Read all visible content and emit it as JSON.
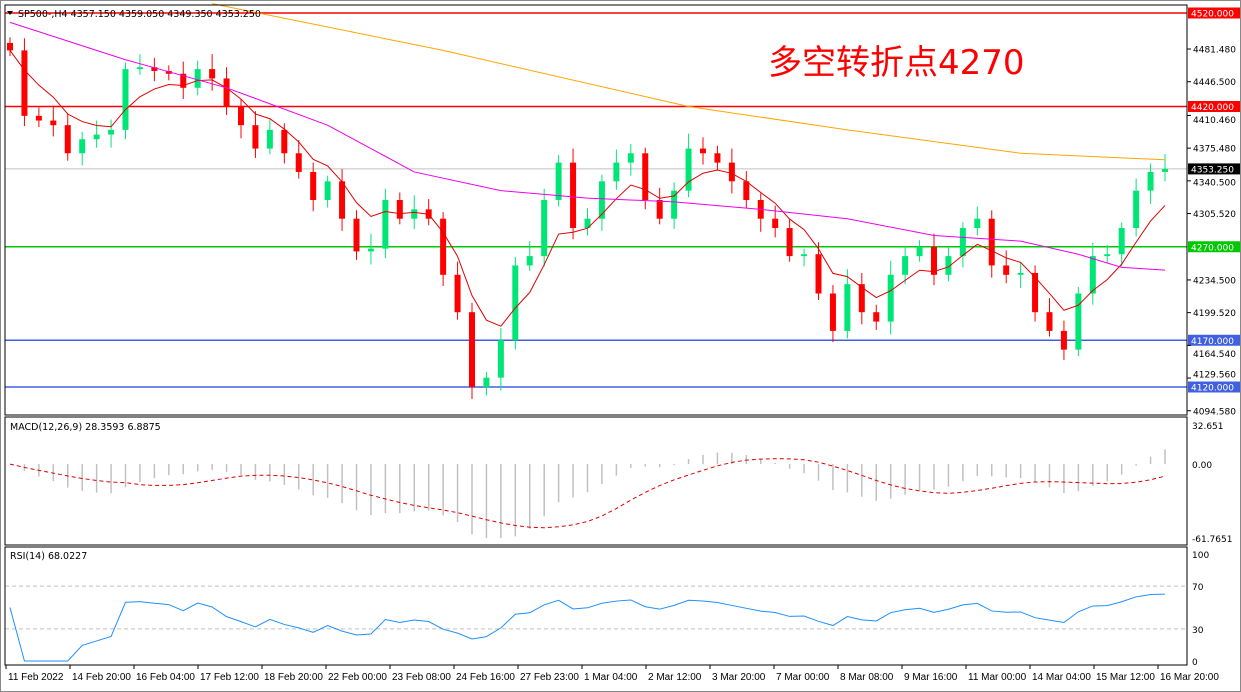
{
  "header": {
    "symbol": "SP500-,H4",
    "ohlc": "4357.150 4359.050 4349.350 4353.250"
  },
  "annotation": {
    "text": "多空转折点4270",
    "color": "#ff0000"
  },
  "chart_data": {
    "type": "candlestick",
    "price_axis": {
      "ticks": [
        "4481.480",
        "4446.500",
        "4410.460",
        "4375.480",
        "4340.500",
        "4305.520",
        "4234.500",
        "4199.520",
        "4164.540",
        "4129.560",
        "4094.580"
      ],
      "range": [
        4091,
        4525
      ]
    },
    "levels": [
      {
        "price": 4520,
        "label": "4520.000",
        "color": "#ff0000"
      },
      {
        "price": 4420,
        "label": "4420.000",
        "color": "#ff0000"
      },
      {
        "price": 4270,
        "label": "4270.000",
        "color": "#00c800"
      },
      {
        "price": 4170,
        "label": "4170.000",
        "color": "#4060e0"
      },
      {
        "price": 4120,
        "label": "4120.000",
        "color": "#4060e0"
      }
    ],
    "current_price": {
      "price": 4353.25,
      "label": "4353.250"
    },
    "closes": [
      4480,
      4410,
      4405,
      4400,
      4370,
      4385,
      4390,
      4395,
      4460,
      4462,
      4458,
      4455,
      4440,
      4460,
      4450,
      4420,
      4400,
      4375,
      4395,
      4370,
      4350,
      4320,
      4340,
      4300,
      4265,
      4268,
      4320,
      4300,
      4310,
      4300,
      4240,
      4200,
      4120,
      4130,
      4170,
      4250,
      4260,
      4320,
      4360,
      4290,
      4300,
      4340,
      4360,
      4370,
      4320,
      4300,
      4330,
      4375,
      4370,
      4360,
      4340,
      4320,
      4300,
      4290,
      4260,
      4262,
      4220,
      4180,
      4230,
      4200,
      4190,
      4240,
      4260,
      4270,
      4240,
      4260,
      4290,
      4300,
      4250,
      4240,
      4242,
      4200,
      4180,
      4160,
      4220,
      4260,
      4262,
      4290,
      4330,
      4350,
      4353.25
    ],
    "colors": {
      "up": "#00e676",
      "down": "#ff0000",
      "ma_fast": "#e00000",
      "ma_mid": "#ee00ee",
      "ma_slow": "#ffa500"
    },
    "ma_mid": [
      [
        0,
        4510
      ],
      [
        8,
        4470
      ],
      [
        15,
        4440
      ],
      [
        22,
        4400
      ],
      [
        28,
        4350
      ],
      [
        34,
        4330
      ],
      [
        40,
        4322
      ],
      [
        46,
        4318
      ],
      [
        52,
        4310
      ],
      [
        58,
        4300
      ],
      [
        64,
        4282
      ],
      [
        70,
        4276
      ],
      [
        74,
        4262
      ],
      [
        77,
        4248
      ],
      [
        80,
        4245
      ]
    ],
    "ma_slow": [
      [
        14,
        4530
      ],
      [
        30,
        4480
      ],
      [
        47,
        4420
      ],
      [
        58,
        4395
      ],
      [
        70,
        4370
      ],
      [
        80,
        4363
      ]
    ],
    "time_axis": [
      "11 Feb 2022",
      "14 Feb 20:00",
      "16 Feb 04:00",
      "17 Feb 12:00",
      "18 Feb 20:00",
      "22 Feb 00:00",
      "23 Feb 08:00",
      "24 Feb 16:00",
      "27 Feb 23:00",
      "1 Mar 04:00",
      "2 Mar 12:00",
      "3 Mar 20:00",
      "7 Mar 00:00",
      "8 Mar 08:00",
      "9 Mar 16:00",
      "11 Mar 00:00",
      "14 Mar 04:00",
      "15 Mar 12:00",
      "16 Mar 20:00"
    ],
    "macd": {
      "label": "MACD(12,26,9) 28.3593 6.8875",
      "ticks": [
        "32.651",
        "0.00",
        "-61.7651"
      ],
      "range": [
        -61.7651,
        32.651
      ]
    },
    "rsi": {
      "label": "RSI(14) 68.0227",
      "ticks": [
        "100",
        "70",
        "30",
        "0"
      ],
      "levels": [
        70,
        30
      ],
      "line_color": "#1e90ff"
    }
  }
}
